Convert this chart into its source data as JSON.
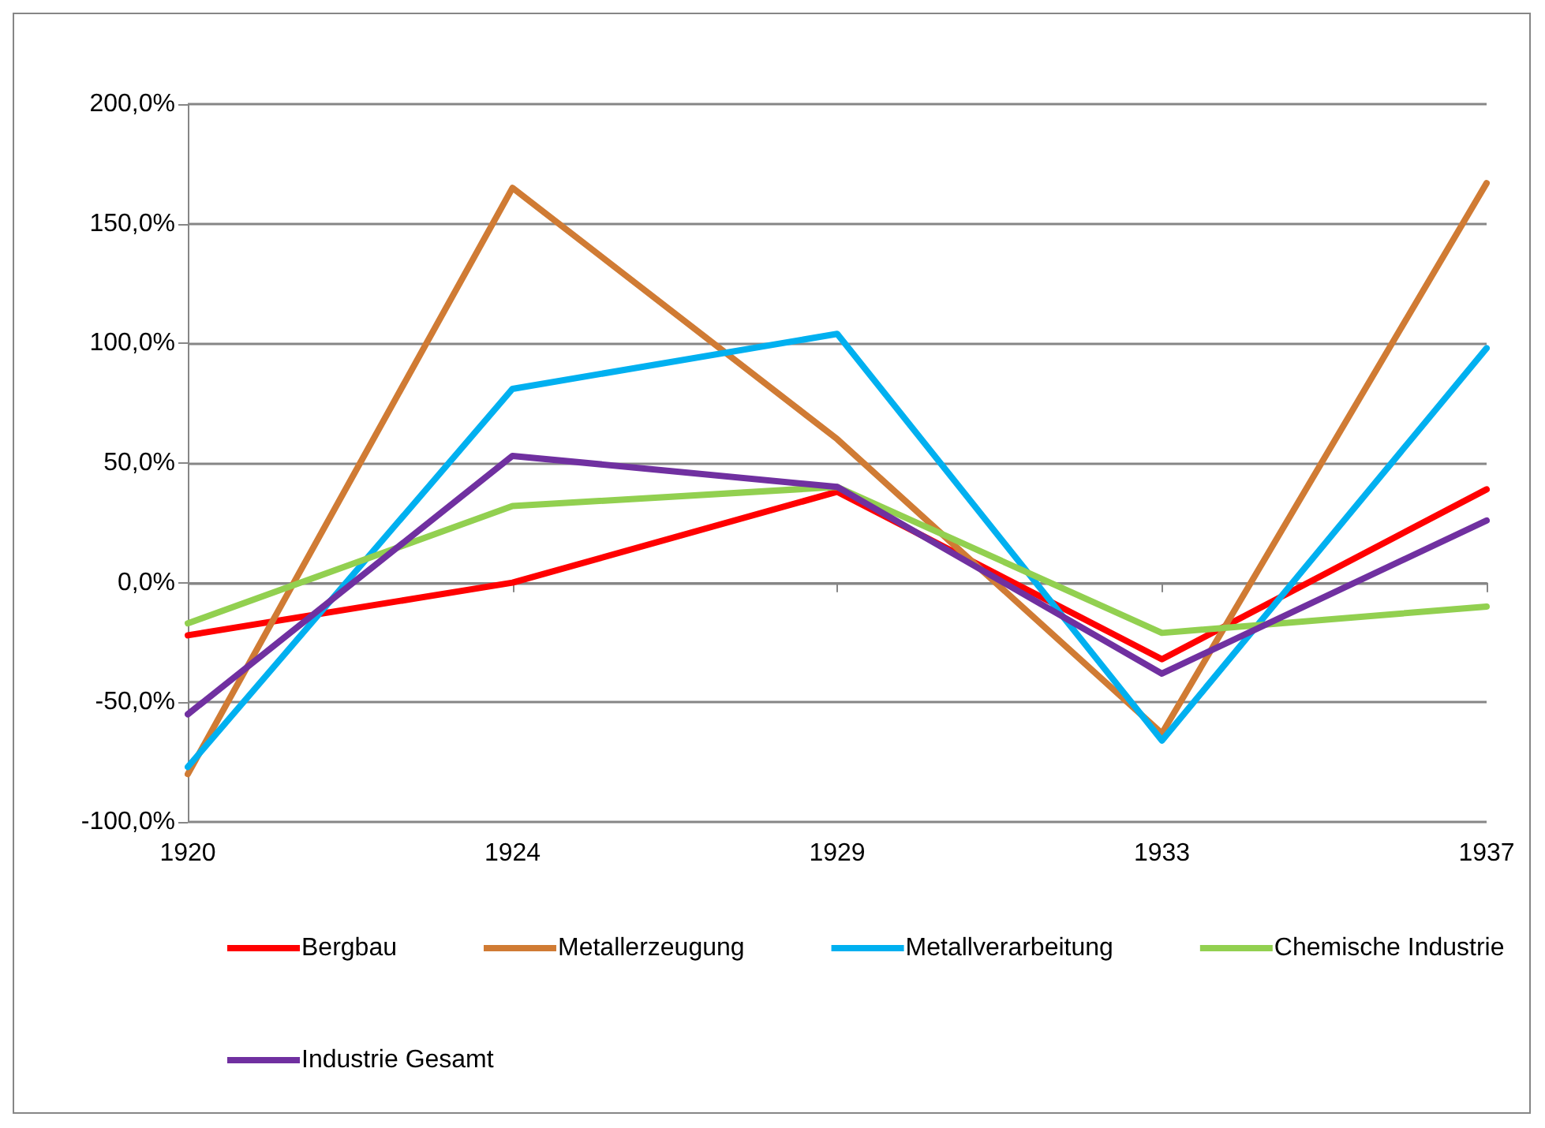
{
  "chart_data": {
    "type": "line",
    "categories": [
      "1920",
      "1924",
      "1929",
      "1933",
      "1937"
    ],
    "series": [
      {
        "name": "Bergbau",
        "color": "#ff0000",
        "values": [
          -22,
          0,
          38,
          -32,
          39
        ]
      },
      {
        "name": "Metallerzeugung",
        "color": "#d07b34",
        "values": [
          -80,
          165,
          60,
          -63,
          167
        ]
      },
      {
        "name": "Metallverarbeitung",
        "color": "#00b0f0",
        "values": [
          -77,
          81,
          104,
          -66,
          98
        ]
      },
      {
        "name": "Chemische Industrie",
        "color": "#92d050",
        "values": [
          -17,
          32,
          40,
          -21,
          -10
        ]
      },
      {
        "name": "Industrie Gesamt",
        "color": "#7030a0",
        "values": [
          -55,
          53,
          40,
          -38,
          26
        ]
      }
    ],
    "ylim": [
      -100,
      200
    ],
    "yticks": [
      {
        "value": -100,
        "label": "-100,0%"
      },
      {
        "value": -50,
        "label": "-50,0%"
      },
      {
        "value": 0,
        "label": "0,0%"
      },
      {
        "value": 50,
        "label": "50,0%"
      },
      {
        "value": 100,
        "label": "100,0%"
      },
      {
        "value": 150,
        "label": "150,0%"
      },
      {
        "value": 200,
        "label": "200,0%"
      }
    ],
    "grid": "y",
    "legend": "bottom",
    "marker": "none",
    "line_style": "solid"
  }
}
